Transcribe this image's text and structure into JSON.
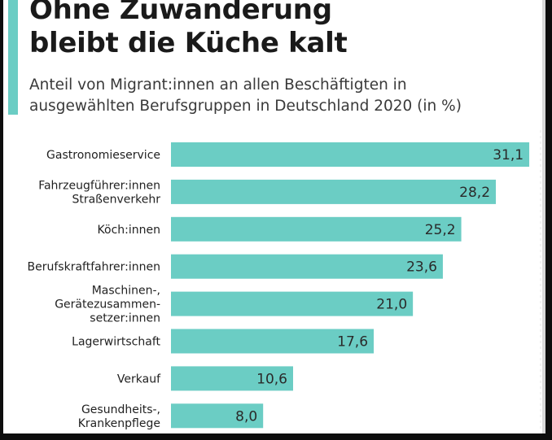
{
  "title_lines": [
    "Ohne Zuwanderung",
    "bleibt die Küche kalt"
  ],
  "subtitle_lines": [
    "Anteil von Migrant:innen an allen Beschäftigten in",
    "ausgewählten Berufsgruppen in Deutschland 2020 (in %)"
  ],
  "colors": {
    "bar": "#6bcdc4",
    "accent": "#6bcdc4"
  },
  "chart_data": {
    "type": "bar",
    "orientation": "horizontal",
    "title": "Ohne Zuwanderung bleibt die Küche kalt",
    "subtitle": "Anteil von Migrant:innen an allen Beschäftigten in ausgewählten Berufsgruppen in Deutschland 2020 (in %)",
    "categories": [
      [
        "Gastronomieservice"
      ],
      [
        "Fahrzeugführer:innen",
        "Straßenverkehr"
      ],
      [
        "Köch:innen"
      ],
      [
        "Berufskraftfahrer:innen"
      ],
      [
        "Maschinen-,",
        "Gerätezusammen-",
        "setzer:innen"
      ],
      [
        "Lagerwirtschaft"
      ],
      [
        "Verkauf"
      ],
      [
        "Gesundheits-,",
        "Krankenpflege"
      ]
    ],
    "values": [
      31.1,
      28.2,
      25.2,
      23.6,
      21.0,
      17.6,
      10.6,
      8.0
    ],
    "value_labels": [
      "31,1",
      "28,2",
      "25,2",
      "23,6",
      "21,0",
      "17,6",
      "10,6",
      "8,0"
    ],
    "grid": false
  }
}
